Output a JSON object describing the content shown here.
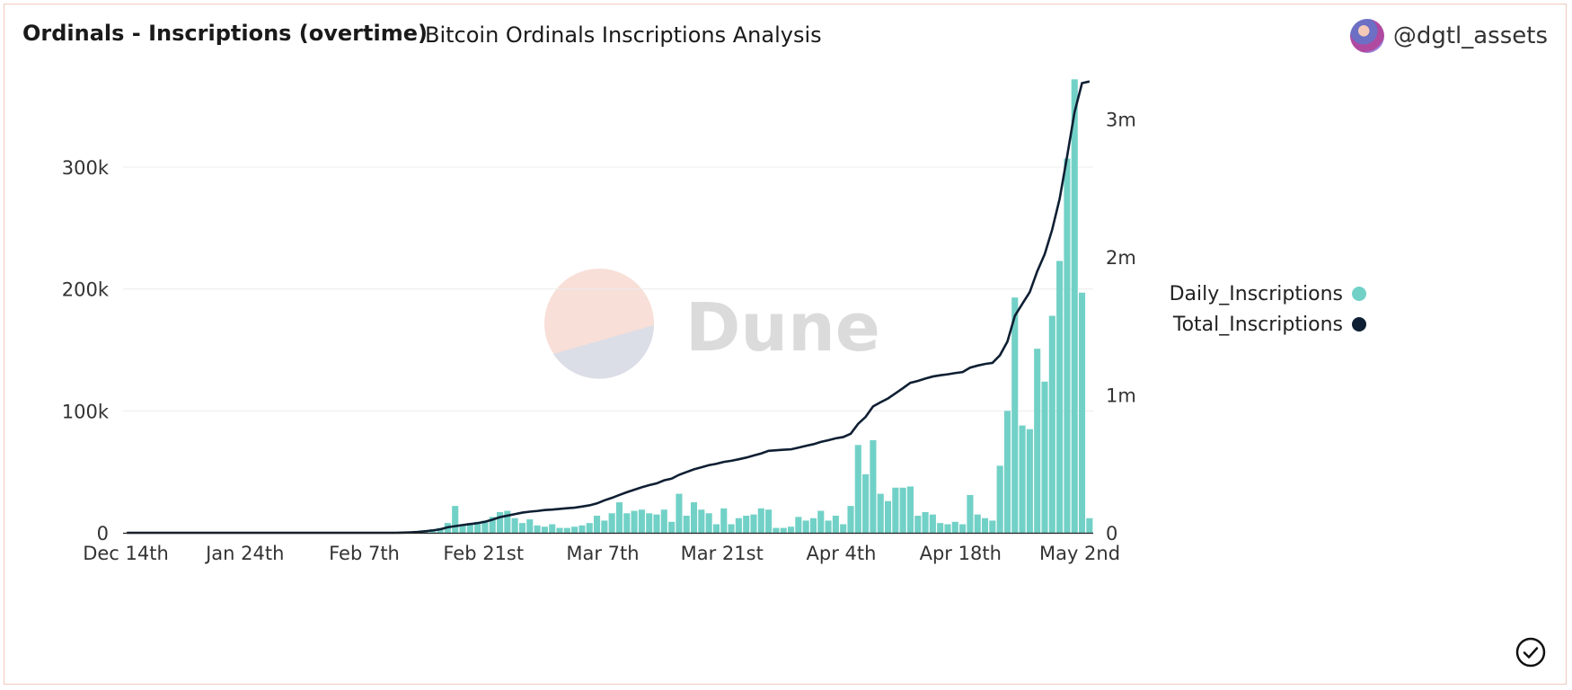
{
  "header": {
    "title": "Ordinals - Inscriptions (overtime)",
    "subtitle": "Bitcoin Ordinals Inscriptions Analysis",
    "author": "@dgtl_assets"
  },
  "watermark": {
    "text": "Dune"
  },
  "colors": {
    "daily": "#72d1c7",
    "total": "#0f1f33",
    "grid": "#ececec"
  },
  "chart_data": {
    "type": "bar",
    "x_ticks": [
      "Dec 14th",
      "Jan 24th",
      "Feb 7th",
      "Feb 21st",
      "Mar 7th",
      "Mar 21st",
      "Apr 4th",
      "Apr 18th",
      "May 2nd"
    ],
    "y_ticks_left": [
      "0",
      "100k",
      "200k",
      "300k"
    ],
    "y_ticks_right": [
      "0",
      "1m",
      "2m",
      "3m"
    ],
    "ylim_left": [
      0,
      370000
    ],
    "ylim_right": [
      0,
      3270000
    ],
    "legend_position": "right",
    "series": [
      {
        "name": "Daily_Inscriptions",
        "type": "bar",
        "axis": "left",
        "values": [
          0,
          0,
          0,
          0,
          0,
          0,
          0,
          0,
          0,
          0,
          0,
          0,
          0,
          0,
          0,
          0,
          0,
          0,
          0,
          0,
          0,
          0,
          0,
          0,
          0,
          0,
          0,
          0,
          0,
          0,
          0,
          0,
          0,
          0,
          0,
          0,
          0,
          200,
          500,
          1000,
          2000,
          3000,
          4000,
          8000,
          22000,
          7000,
          8000,
          9000,
          10000,
          13000,
          17000,
          18000,
          12000,
          8000,
          11000,
          6000,
          5000,
          7000,
          4000,
          4000,
          5000,
          6000,
          8000,
          14000,
          10000,
          16000,
          25000,
          16000,
          18000,
          19000,
          16000,
          15000,
          19000,
          9000,
          32000,
          14000,
          25000,
          19000,
          16000,
          7000,
          20000,
          7000,
          12000,
          14000,
          15000,
          20000,
          19000,
          4000,
          4000,
          5000,
          13000,
          10000,
          12000,
          18000,
          10000,
          14000,
          7000,
          22000,
          72000,
          48000,
          76000,
          32000,
          26000,
          37000,
          37000,
          38000,
          14000,
          17000,
          15000,
          8000,
          7000,
          9000,
          7000,
          31000,
          15000,
          12000,
          10000,
          55000,
          100000,
          193000,
          88000,
          85000,
          151000,
          124000,
          178000,
          223000,
          307000,
          372000,
          197000,
          12000
        ],
        "total_values": [
          0,
          0,
          0,
          0,
          0,
          0,
          0,
          0,
          0,
          0,
          0,
          0,
          0,
          0,
          0,
          0,
          0,
          0,
          0,
          0,
          0,
          0,
          0,
          0,
          0,
          0,
          0,
          0,
          0,
          0,
          0,
          0,
          0,
          0,
          0,
          0,
          0,
          1000,
          3000,
          6000,
          11000,
          17000,
          25000,
          40000,
          48000,
          56000,
          63000,
          70000,
          80000,
          95000,
          113000,
          124000,
          135000,
          146000,
          153000,
          158000,
          165000,
          168000,
          173000,
          178000,
          182000,
          190000,
          199000,
          213000,
          235000,
          253000,
          274000,
          294000,
          312000,
          330000,
          345000,
          358000,
          380000,
          392000,
          420000,
          440000,
          460000,
          475000,
          490000,
          500000,
          514000,
          522000,
          533000,
          545000,
          560000,
          575000,
          594000,
          598000,
          602000,
          605000,
          617000,
          630000,
          642000,
          659000,
          671000,
          685000,
          694000,
          718000,
          790000,
          840000,
          916000,
          946000,
          974000,
          1011000,
          1048000,
          1087000,
          1101000,
          1118000,
          1133000,
          1142000,
          1149000,
          1158000,
          1165000,
          1197000,
          1212000,
          1224000,
          1232000,
          1287000,
          1386000,
          1573000,
          1660000,
          1745000,
          1896000,
          2020000,
          2198000,
          2421000,
          2728000,
          3050000,
          3260000,
          3272000
        ]
      }
    ]
  },
  "legend": {
    "items": [
      {
        "label": "Daily_Inscriptions",
        "color": "#72d1c7"
      },
      {
        "label": "Total_Inscriptions",
        "color": "#0f1f33"
      }
    ]
  }
}
